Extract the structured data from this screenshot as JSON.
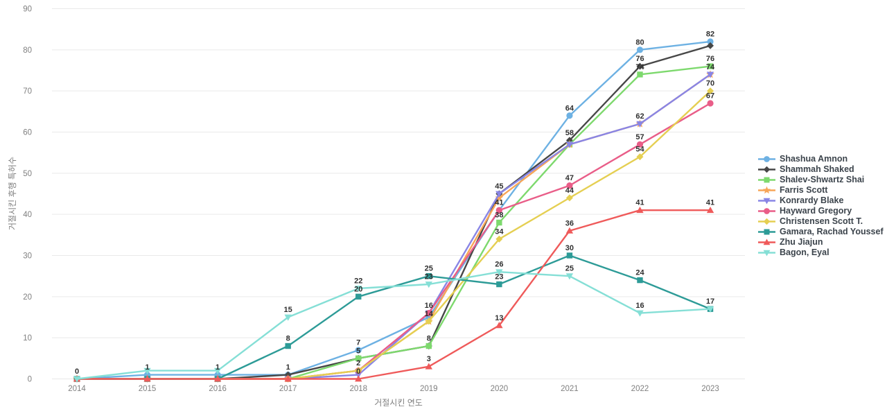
{
  "chart_data": {
    "type": "line",
    "title": "",
    "xlabel": "거절시킨 연도",
    "ylabel": "거절시킨 후행 특허수",
    "x": [
      2014,
      2015,
      2016,
      2017,
      2018,
      2019,
      2020,
      2021,
      2022,
      2023
    ],
    "y_ticks": [
      0,
      10,
      20,
      30,
      40,
      50,
      60,
      70,
      80,
      90
    ],
    "ylim": [
      0,
      90
    ],
    "grid": true,
    "legend_position": "right",
    "series": [
      {
        "name": "Shashua Amnon",
        "color": "#6db1e3",
        "marker": "circle",
        "values": [
          0,
          1,
          1,
          1,
          7,
          15,
          41,
          64,
          80,
          82
        ],
        "label_years": [
          2014,
          2015,
          2016,
          2017,
          2018,
          2020,
          2021,
          2022,
          2023
        ]
      },
      {
        "name": "Shammah Shaked",
        "color": "#474747",
        "marker": "diamond",
        "values": [
          0,
          0,
          0,
          1,
          5,
          8,
          45,
          58,
          76,
          81
        ],
        "label_years": [
          2020,
          2021,
          2022
        ]
      },
      {
        "name": "Shalev-Shwartz Shai",
        "color": "#7dd96d",
        "marker": "square",
        "values": [
          0,
          0,
          0,
          0,
          5,
          8,
          38,
          57,
          74,
          76
        ],
        "label_years": [
          2018,
          2019,
          2020,
          2022,
          2023
        ]
      },
      {
        "name": "Farris Scott",
        "color": "#f7a558",
        "marker": "star",
        "values": [
          0,
          0,
          0,
          0,
          2,
          14,
          44,
          57,
          62,
          74
        ],
        "label_years": []
      },
      {
        "name": "Konrardy Blake",
        "color": "#8985e5",
        "marker": "triangle-down",
        "values": [
          0,
          0,
          0,
          0,
          1,
          16,
          45,
          57,
          62,
          74
        ],
        "label_years": [
          2022,
          2023
        ]
      },
      {
        "name": "Hayward Gregory",
        "color": "#e95d88",
        "marker": "circle",
        "values": [
          0,
          0,
          0,
          0,
          2,
          16,
          41,
          47,
          57,
          67
        ],
        "label_years": [
          2019,
          2021,
          2022,
          2023
        ]
      },
      {
        "name": "Christensen Scott T.",
        "color": "#e5cf52",
        "marker": "diamond",
        "values": [
          0,
          0,
          0,
          0,
          2,
          14,
          34,
          44,
          54,
          70
        ],
        "label_years": [
          2018,
          2019,
          2020,
          2021,
          2022,
          2023
        ]
      },
      {
        "name": "Gamara, Rachad Youssef",
        "color": "#2d9b97",
        "marker": "square",
        "values": [
          0,
          0,
          0,
          8,
          20,
          25,
          23,
          30,
          24,
          17
        ],
        "label_years": [
          2017,
          2018,
          2019,
          2020,
          2021,
          2022,
          2023
        ]
      },
      {
        "name": "Zhu Jiajun",
        "color": "#ef5a5a",
        "marker": "triangle-up",
        "values": [
          0,
          0,
          0,
          0,
          0,
          3,
          13,
          36,
          41,
          41
        ],
        "label_years": [
          2018,
          2019,
          2020,
          2021,
          2022,
          2023
        ]
      },
      {
        "name": "Bagon, Eyal",
        "color": "#85dfd6",
        "marker": "triangle-down",
        "values": [
          0,
          2,
          2,
          15,
          22,
          23,
          26,
          25,
          16,
          17
        ],
        "label_years": [
          2017,
          2018,
          2019,
          2020,
          2021,
          2022
        ]
      }
    ]
  }
}
